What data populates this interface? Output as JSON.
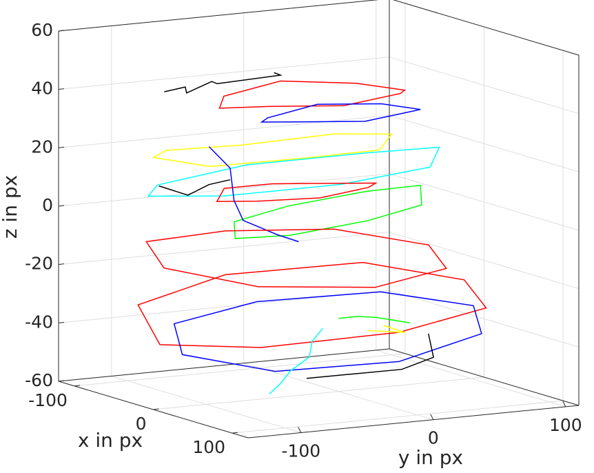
{
  "chart_data": {
    "type": "line3d",
    "xlabel": "x in px",
    "ylabel": "y in px",
    "zlabel": "z in px",
    "xlim": [
      -120,
      120
    ],
    "ylim": [
      -140,
      110
    ],
    "zlim": [
      -60,
      60
    ],
    "xticks": [
      -100,
      0,
      100
    ],
    "yticks": [
      -100,
      0,
      100
    ],
    "zticks": [
      -60,
      -40,
      -20,
      0,
      20,
      40,
      60
    ],
    "grid": true,
    "series": [
      {
        "color": "#ff0000",
        "x": [
          40,
          28,
          0,
          -28,
          -40,
          -28,
          0,
          28,
          40
        ],
        "y": [
          -20,
          30,
          50,
          30,
          -20,
          -70,
          -90,
          -70,
          -20
        ],
        "z": [
          42,
          43,
          41,
          42,
          44,
          42,
          41,
          43,
          42
        ]
      },
      {
        "color": "#0000ff",
        "x": [
          50,
          41,
          20,
          -1,
          -10,
          -1,
          20,
          41,
          50
        ],
        "y": [
          -10,
          33,
          50,
          33,
          -10,
          -53,
          -70,
          -53,
          -10
        ],
        "z": [
          37,
          38,
          36,
          37,
          38,
          36,
          37,
          38,
          37
        ]
      },
      {
        "color": "#000000",
        "x": [
          -70,
          -60,
          -50,
          -60,
          -70,
          -40,
          -30,
          -40
        ],
        "y": [
          -90,
          -80,
          -85,
          -60,
          -50,
          -20,
          -30,
          -25
        ],
        "z": [
          41,
          43,
          42,
          44,
          42,
          46,
          48,
          47
        ]
      },
      {
        "color": "#ffff00",
        "x": [
          -10,
          -22,
          -50,
          -78,
          -90,
          -78,
          -50,
          -22,
          -10
        ],
        "y": [
          -20,
          44,
          70,
          44,
          -20,
          -84,
          -110,
          -84,
          -20
        ],
        "z": [
          20,
          19,
          21,
          20,
          18,
          20,
          21,
          19,
          20
        ]
      },
      {
        "color": "#00ffff",
        "x": [
          20,
          2,
          -40,
          -82,
          -100,
          -82,
          -40,
          2,
          20
        ],
        "y": [
          -10,
          68,
          100,
          68,
          -10,
          -88,
          -120,
          -88,
          -10
        ],
        "z": [
          13,
          14,
          16,
          12,
          10,
          8,
          9,
          11,
          13
        ]
      },
      {
        "color": "#00ff00",
        "x": [
          70,
          55,
          20,
          -15,
          -30,
          -15,
          20,
          55,
          70
        ],
        "y": [
          -20,
          30,
          50,
          30,
          -20,
          -70,
          -90,
          -70,
          -20
        ],
        "z": [
          5,
          7,
          10,
          6,
          2,
          0,
          -2,
          1,
          5
        ]
      },
      {
        "color": "#ff0000",
        "x": [
          10,
          1,
          -20,
          -41,
          -50,
          -41,
          -20,
          1,
          10
        ],
        "y": [
          -20,
          22,
          40,
          22,
          -20,
          -62,
          -80,
          -62,
          -20
        ],
        "z": [
          8,
          9,
          8,
          7,
          8,
          9,
          7,
          8,
          8
        ]
      },
      {
        "color": "#0000ff",
        "x": [
          -30,
          -20,
          10,
          30,
          40,
          50
        ],
        "y": [
          -80,
          -70,
          -85,
          -90,
          -70,
          -60
        ],
        "z": [
          25,
          18,
          10,
          5,
          0,
          -2
        ]
      },
      {
        "color": "#000000",
        "x": [
          -60,
          -40,
          -30,
          -20
        ],
        "y": [
          -100,
          -90,
          -80,
          -70
        ],
        "z": [
          10,
          8,
          12,
          14
        ]
      },
      {
        "color": "#ff0000",
        "x": [
          80,
          51,
          -20,
          -91,
          -110,
          -91,
          -20,
          51,
          80
        ],
        "y": [
          -20,
          51,
          80,
          51,
          -20,
          -91,
          -120,
          -91,
          -20
        ],
        "z": [
          -17,
          -16,
          -15,
          -14,
          -13,
          -12,
          -14,
          -16,
          -17
        ]
      },
      {
        "color": "#ff0000",
        "x": [
          110,
          78,
          0,
          -78,
          -110,
          -78,
          0,
          78,
          110
        ],
        "y": [
          -20,
          65,
          95,
          65,
          -20,
          -105,
          -135,
          -105,
          -20
        ],
        "z": [
          -30,
          -28,
          -26,
          -25,
          -28,
          -32,
          -38,
          -34,
          -30
        ]
      },
      {
        "color": "#0000ff",
        "x": [
          110,
          84,
          20,
          -44,
          -70,
          -44,
          20,
          84,
          110
        ],
        "y": [
          -20,
          58,
          90,
          58,
          -20,
          -98,
          -130,
          -98,
          -20
        ],
        "z": [
          -40,
          -36,
          -33,
          -32,
          -34,
          -36,
          -40,
          -42,
          -40
        ]
      },
      {
        "color": "#00ffff",
        "x": [
          80,
          60,
          40,
          30,
          0,
          -20
        ],
        "y": [
          -100,
          -80,
          -60,
          -40,
          -20,
          0
        ],
        "z": [
          -50,
          -49,
          -47,
          -44,
          -42,
          -40
        ]
      },
      {
        "color": "#000000",
        "x": [
          60,
          70,
          80,
          70,
          50,
          30
        ],
        "y": [
          -60,
          -30,
          0,
          30,
          40,
          50
        ],
        "z": [
          -48,
          -47,
          -46,
          -44,
          -42,
          -40
        ]
      },
      {
        "color": "#ffff00",
        "x": [
          20,
          10,
          0,
          -10
        ],
        "y": [
          10,
          30,
          50,
          40
        ],
        "z": [
          -38,
          -40,
          -42,
          -40
        ]
      },
      {
        "color": "#00ff00",
        "x": [
          0,
          -10,
          -20,
          -10
        ],
        "y": [
          0,
          20,
          40,
          60
        ],
        "z": [
          -35,
          -36,
          -38,
          -40
        ]
      }
    ]
  }
}
